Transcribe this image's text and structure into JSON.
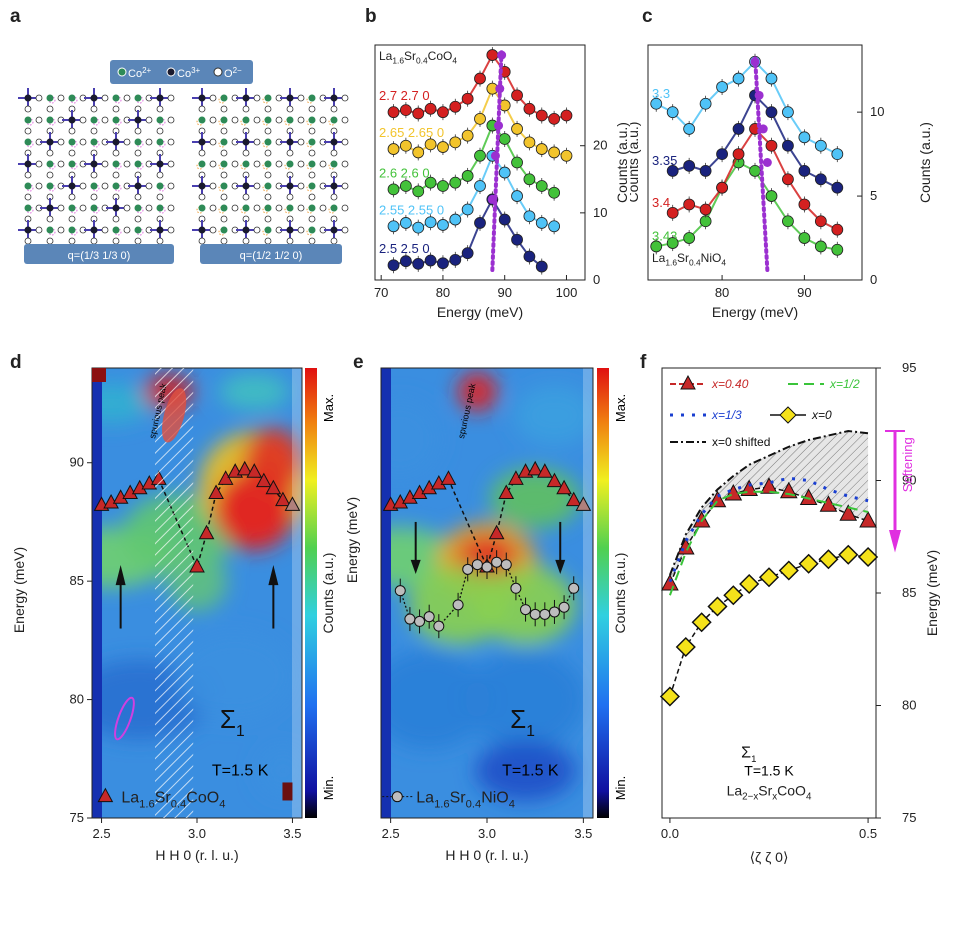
{
  "panel_letters": [
    "a",
    "b",
    "c",
    "d",
    "e",
    "f"
  ],
  "panel_a": {
    "legend": "●Co2+ ●Co3+ ○O2-",
    "legend_co2": "Co",
    "legend_co2_sup": "2+",
    "legend_co3": "Co",
    "legend_co3_sup": "3+",
    "legend_o": "O",
    "legend_o_sup": "2−",
    "label_left": "q=(1/3 1/3 0)",
    "label_right": "q=(1/2 1/2 0)",
    "colors": {
      "co2": "#2e8b57",
      "co3": "#1a1a2e",
      "o": "#ffffff",
      "bond": "#4a3fb0",
      "pink": "#e070e0",
      "orange": "#f0a040"
    }
  },
  "chart_data": [
    {
      "panel": "b",
      "type": "scatter",
      "title": "La1.6Sr0.4CoO4",
      "xlabel": "Energy (meV)",
      "ylabel": "Counts (a.u.)",
      "xlim": [
        69,
        103
      ],
      "ylim": [
        0,
        35
      ],
      "xticks": [
        70,
        80,
        90,
        100
      ],
      "yticks": [
        0,
        10,
        20
      ],
      "peak_line_color": "#9b30d0",
      "series": [
        {
          "name": "2.5 2.5 0",
          "color": "#1a237e",
          "x": [
            72,
            74,
            76,
            78,
            80,
            82,
            84,
            86,
            88,
            90,
            92,
            94,
            96
          ],
          "y": [
            2.2,
            2.8,
            2.4,
            2.9,
            2.5,
            3.0,
            4.0,
            8.5,
            12.0,
            9.0,
            6.0,
            3.5,
            2.0
          ]
        },
        {
          "name": "2.55 2.55 0",
          "color": "#4fc3f7",
          "x": [
            72,
            74,
            76,
            78,
            80,
            82,
            84,
            86,
            88,
            90,
            92,
            94,
            96,
            98
          ],
          "y": [
            8.0,
            8.5,
            7.8,
            8.6,
            8.2,
            9.0,
            10.5,
            14.0,
            18.5,
            16.0,
            12.5,
            9.5,
            8.5,
            8.0
          ]
        },
        {
          "name": "2.6 2.6 0",
          "color": "#43c23a",
          "x": [
            72,
            74,
            76,
            78,
            80,
            82,
            84,
            86,
            88,
            90,
            92,
            94,
            96,
            98
          ],
          "y": [
            13.5,
            14.0,
            13.2,
            14.5,
            14.0,
            14.5,
            15.5,
            18.5,
            23.0,
            21.0,
            17.5,
            15.0,
            14.0,
            13.0
          ]
        },
        {
          "name": "2.65 2.65 0",
          "color": "#f2c42c",
          "x": [
            72,
            74,
            76,
            78,
            80,
            82,
            84,
            86,
            88,
            90,
            92,
            94,
            96,
            98,
            100
          ],
          "y": [
            19.5,
            20.0,
            19.0,
            20.2,
            19.8,
            20.5,
            21.5,
            24.0,
            28.5,
            26.0,
            22.5,
            20.5,
            19.5,
            19.0,
            18.5
          ]
        },
        {
          "name": "2.7 2.7 0",
          "color": "#d42020",
          "x": [
            72,
            74,
            76,
            78,
            80,
            82,
            84,
            86,
            88,
            90,
            92,
            94,
            96,
            98,
            100
          ],
          "y": [
            25.0,
            25.3,
            24.8,
            25.5,
            25.0,
            25.8,
            27.0,
            30.0,
            33.5,
            31.0,
            27.5,
            25.5,
            24.5,
            24.0,
            24.5
          ]
        }
      ],
      "peak_positions": [
        88.0,
        88.5,
        89.0,
        89.2,
        89.5
      ]
    },
    {
      "panel": "c",
      "type": "scatter",
      "title": "La1.6Sr0.4NiO4",
      "xlabel": "Energy (meV)",
      "ylabel": "Counts (a.u.)",
      "xlim": [
        71,
        97
      ],
      "ylim": [
        0,
        14
      ],
      "xticks": [
        80,
        90
      ],
      "yticks": [
        0,
        5,
        10
      ],
      "peak_line_color": "#9b30d0",
      "series": [
        {
          "name": "3.43",
          "color": "#43c23a",
          "x": [
            72,
            74,
            76,
            78,
            80,
            82,
            84,
            86,
            88,
            90,
            92,
            94
          ],
          "y": [
            2.0,
            2.2,
            2.5,
            3.5,
            5.5,
            7.0,
            6.5,
            5.0,
            3.5,
            2.5,
            2.0,
            1.8
          ]
        },
        {
          "name": "3.4",
          "color": "#d42020",
          "x": [
            74,
            76,
            78,
            80,
            82,
            84,
            86,
            88,
            90,
            92,
            94
          ],
          "y": [
            4.0,
            4.5,
            4.2,
            5.5,
            7.5,
            9.0,
            8.0,
            6.0,
            4.5,
            3.5,
            3.0
          ]
        },
        {
          "name": "3.35",
          "color": "#1a237e",
          "x": [
            74,
            76,
            78,
            80,
            82,
            84,
            86,
            88,
            90,
            92,
            94
          ],
          "y": [
            6.5,
            6.8,
            6.5,
            7.5,
            9.0,
            11.0,
            10.0,
            8.0,
            6.5,
            6.0,
            5.5
          ]
        },
        {
          "name": "3.3",
          "color": "#4fc3f7",
          "x": [
            72,
            74,
            76,
            78,
            80,
            82,
            84,
            86,
            88,
            90,
            92,
            94
          ],
          "y": [
            10.5,
            10.0,
            9.0,
            10.5,
            11.5,
            12.0,
            13.0,
            12.0,
            10.0,
            8.5,
            8.0,
            7.5
          ]
        }
      ],
      "peak_positions": [
        85.5,
        85.0,
        84.5,
        84.0
      ]
    },
    {
      "panel": "d",
      "type": "heatmap",
      "xlabel": "H H 0 (r. l. u.)",
      "ylabel": "Energy (meV)",
      "xlim": [
        2.45,
        3.55
      ],
      "ylim": [
        75,
        94
      ],
      "xticks": [
        2.5,
        3.0,
        3.5
      ],
      "yticks": [
        75,
        80,
        85,
        90
      ],
      "colorbar_label": "Counts (a.u.)",
      "colorbar_max": "Max.",
      "colorbar_min": "Min.",
      "annotation_spurious": "spurious peak",
      "annotation_sigma": "Σ",
      "annotation_sigma_sub": "1",
      "annotation_T": "T=1.5 K",
      "legend_text": "La1.6Sr0.4CoO4",
      "legend_parts": [
        "La",
        "1.6",
        "Sr",
        "0.4",
        "CoO",
        "4"
      ],
      "triangles": {
        "color": "#c62828",
        "x": [
          2.5,
          2.55,
          2.6,
          2.65,
          2.7,
          2.75,
          2.8,
          3.0,
          3.05,
          3.1,
          3.15,
          3.2,
          3.25,
          3.3,
          3.35,
          3.4,
          3.45,
          3.5
        ],
        "y": [
          88.2,
          88.3,
          88.5,
          88.7,
          88.9,
          89.1,
          89.3,
          85.6,
          87.0,
          88.7,
          89.3,
          89.6,
          89.7,
          89.6,
          89.2,
          88.9,
          88.4,
          88.2
        ]
      }
    },
    {
      "panel": "e",
      "type": "heatmap",
      "xlabel": "H H 0 (r. l. u.)",
      "ylabel": "Energy (meV)",
      "xlim": [
        2.45,
        3.55
      ],
      "ylim": [
        75,
        94
      ],
      "xticks": [
        2.5,
        3.0,
        3.5
      ],
      "colorbar_label": "Counts (a.u.)",
      "colorbar_max": "Max.",
      "colorbar_min": "Min.",
      "annotation_spurious": "spurious peak",
      "annotation_sigma": "Σ",
      "annotation_sigma_sub": "1",
      "annotation_T": "T=1.5 K",
      "legend_text": "La1.6Sr0.4NiO4",
      "legend_parts": [
        "La",
        "1.6",
        "Sr",
        "0.4",
        "NiO",
        "4"
      ],
      "triangles": {
        "color": "#c62828",
        "x": [
          2.5,
          2.55,
          2.6,
          2.65,
          2.7,
          2.75,
          2.8,
          3.0,
          3.05,
          3.1,
          3.15,
          3.2,
          3.25,
          3.3,
          3.35,
          3.4,
          3.45,
          3.5
        ],
        "y": [
          88.2,
          88.3,
          88.5,
          88.7,
          88.9,
          89.1,
          89.3,
          85.6,
          87.0,
          88.7,
          89.3,
          89.6,
          89.7,
          89.6,
          89.2,
          88.9,
          88.4,
          88.2
        ]
      },
      "circles": {
        "color": "#bdbdbd",
        "x": [
          2.55,
          2.6,
          2.65,
          2.7,
          2.75,
          2.85,
          2.9,
          2.95,
          3.0,
          3.05,
          3.1,
          3.15,
          3.2,
          3.25,
          3.3,
          3.35,
          3.4,
          3.45
        ],
        "y": [
          84.6,
          83.4,
          83.3,
          83.5,
          83.1,
          84.0,
          85.5,
          85.7,
          85.6,
          85.8,
          85.7,
          84.7,
          83.8,
          83.6,
          83.6,
          83.7,
          83.9,
          84.7
        ]
      }
    },
    {
      "panel": "f",
      "type": "line",
      "xlabel": "⟨ζ ζ 0⟩",
      "ylabel": "Energy (meV)",
      "xlim": [
        -0.02,
        0.52
      ],
      "ylim": [
        75,
        95
      ],
      "xticks": [
        0.0,
        0.5
      ],
      "yticks": [
        75,
        80,
        85,
        90,
        95
      ],
      "annotation_softening": "Softening",
      "annotation_sigma": "Σ",
      "annotation_sigma_sub": "1",
      "annotation_T": "T=1.5 K",
      "annotation_compound": "La2−xSrxCoO4",
      "compound_parts": [
        "La",
        "2−x",
        "Sr",
        "x",
        "CoO",
        "4"
      ],
      "legend": [
        "x=0.40",
        "x=1/2",
        "x=1/3",
        "x=0",
        "x=0 shifted"
      ],
      "series": [
        {
          "name": "x=0.40",
          "color": "#c62828",
          "style": "triangle",
          "x": [
            0.0,
            0.04,
            0.08,
            0.12,
            0.16,
            0.2,
            0.25,
            0.3,
            0.35,
            0.4,
            0.45,
            0.5
          ],
          "y": [
            85.4,
            87.0,
            88.2,
            89.1,
            89.4,
            89.6,
            89.7,
            89.5,
            89.2,
            88.9,
            88.5,
            88.2
          ]
        },
        {
          "name": "x=1/2",
          "color": "#3ac43a",
          "style": "dashed",
          "x": [
            0.0,
            0.04,
            0.08,
            0.12,
            0.16,
            0.2,
            0.25,
            0.3,
            0.35,
            0.4,
            0.45,
            0.5
          ],
          "y": [
            84.9,
            86.8,
            88.2,
            89.1,
            89.4,
            89.5,
            89.5,
            89.4,
            89.2,
            89.0,
            88.8,
            88.6
          ]
        },
        {
          "name": "x=1/3",
          "color": "#1a3fd0",
          "style": "dotted",
          "x": [
            0.0,
            0.04,
            0.08,
            0.12,
            0.16,
            0.2,
            0.25,
            0.3,
            0.35,
            0.4,
            0.45,
            0.5
          ],
          "y": [
            85.5,
            87.3,
            88.5,
            89.3,
            89.6,
            89.8,
            89.9,
            90.1,
            90.0,
            89.6,
            89.3,
            89.1
          ]
        },
        {
          "name": "x=0",
          "color": "#f5e21a",
          "style": "diamond",
          "x": [
            0.0,
            0.04,
            0.08,
            0.12,
            0.16,
            0.2,
            0.25,
            0.3,
            0.35,
            0.4,
            0.45,
            0.5
          ],
          "y": [
            80.4,
            82.6,
            83.7,
            84.4,
            84.9,
            85.4,
            85.7,
            86.0,
            86.3,
            86.5,
            86.7,
            86.6
          ]
        },
        {
          "name": "x=0 shifted",
          "color": "#111111",
          "style": "dashdot",
          "x": [
            0.0,
            0.04,
            0.08,
            0.12,
            0.16,
            0.2,
            0.25,
            0.3,
            0.35,
            0.4,
            0.45,
            0.5
          ],
          "y": [
            85.8,
            87.6,
            88.8,
            89.6,
            90.2,
            90.7,
            91.1,
            91.5,
            91.8,
            92.0,
            92.2,
            92.1
          ]
        }
      ]
    }
  ]
}
